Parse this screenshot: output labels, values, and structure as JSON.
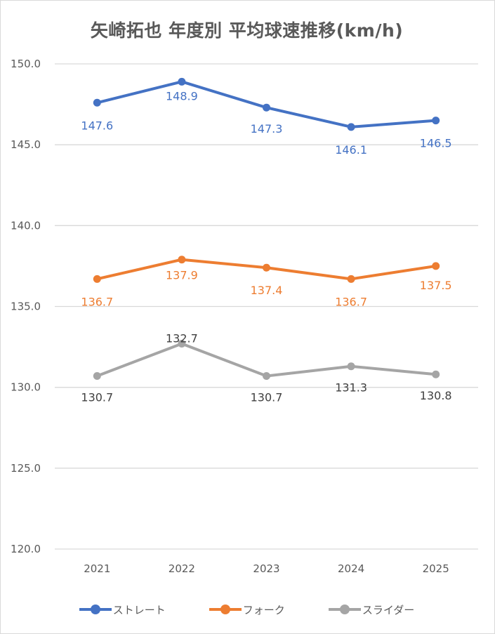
{
  "chart_data": {
    "type": "line",
    "title": "矢崎拓也 年度別 平均球速推移(km/h)",
    "categories": [
      "2021",
      "2022",
      "2023",
      "2024",
      "2025"
    ],
    "ylim": [
      120,
      150
    ],
    "yticks": [
      "120.0",
      "125.0",
      "130.0",
      "135.0",
      "140.0",
      "145.0",
      "150.0"
    ],
    "ytick_values": [
      120,
      125,
      130,
      135,
      140,
      145,
      150
    ],
    "grid": true,
    "legend": "bottom",
    "series": [
      {
        "name": "ストレート",
        "values": [
          147.6,
          148.9,
          147.3,
          146.1,
          146.5
        ],
        "labels": [
          "147.6",
          "148.9",
          "147.3",
          "146.1",
          "146.5"
        ],
        "color": "#4472c4",
        "label_color": "#4472c4"
      },
      {
        "name": "フォーク",
        "values": [
          136.7,
          137.9,
          137.4,
          136.7,
          137.5
        ],
        "labels": [
          "136.7",
          "137.9",
          "137.4",
          "136.7",
          "137.5"
        ],
        "color": "#ed7d31",
        "label_color": "#ed7d31"
      },
      {
        "name": "スライダー",
        "values": [
          130.7,
          132.7,
          130.7,
          131.3,
          130.8
        ],
        "labels": [
          "130.7",
          "132.7",
          "130.7",
          "131.3",
          "130.8"
        ],
        "color": "#a5a5a5",
        "label_color": "#404040"
      }
    ]
  }
}
